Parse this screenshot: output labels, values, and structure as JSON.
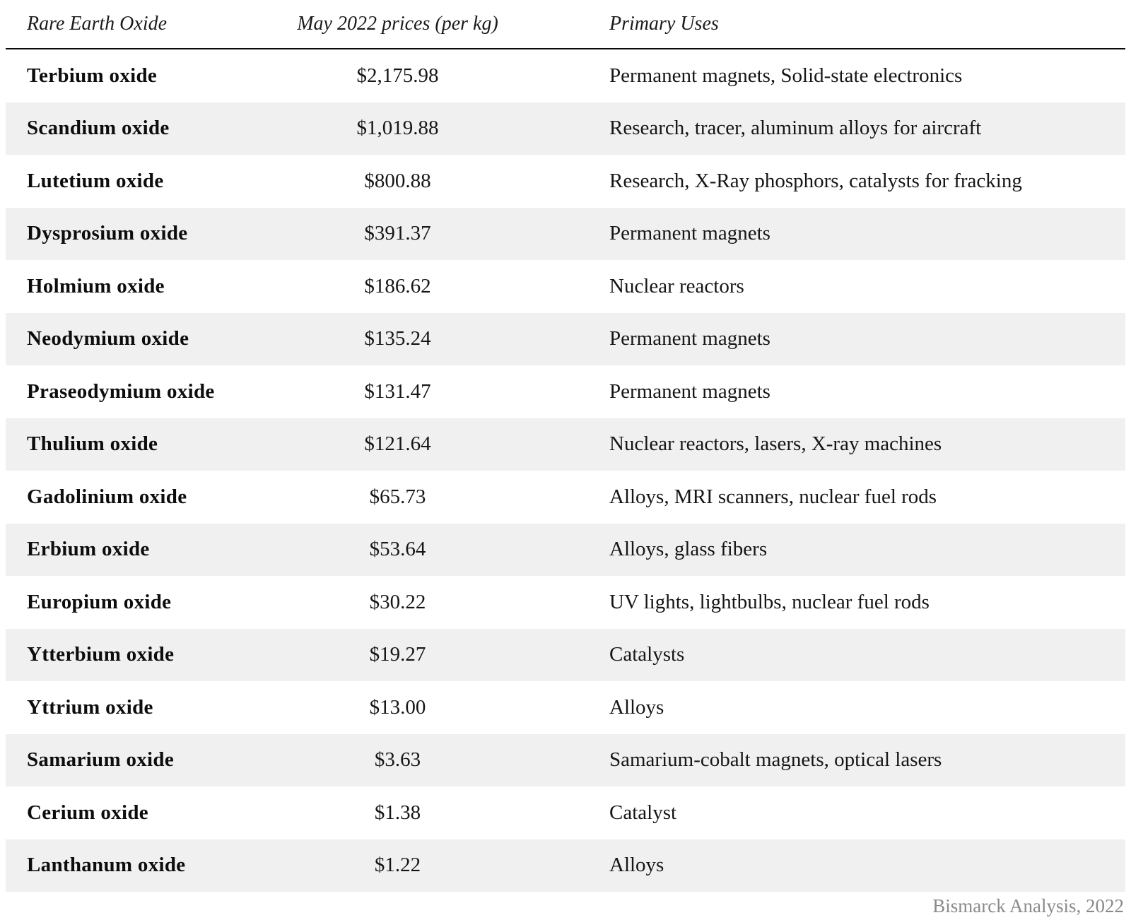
{
  "chart_data": {
    "type": "table",
    "columns": [
      "Rare Earth Oxide",
      "May 2022 prices (per kg)",
      "Primary Uses"
    ],
    "rows": [
      {
        "oxide": "Terbium oxide",
        "price": "$2,175.98",
        "uses": "Permanent magnets, Solid-state electronics"
      },
      {
        "oxide": "Scandium oxide",
        "price": "$1,019.88",
        "uses": "Research, tracer, aluminum alloys for aircraft"
      },
      {
        "oxide": "Lutetium oxide",
        "price": "$800.88",
        "uses": "Research, X-Ray phosphors, catalysts for fracking"
      },
      {
        "oxide": "Dysprosium oxide",
        "price": "$391.37",
        "uses": "Permanent magnets"
      },
      {
        "oxide": "Holmium oxide",
        "price": "$186.62",
        "uses": "Nuclear reactors"
      },
      {
        "oxide": "Neodymium oxide",
        "price": "$135.24",
        "uses": "Permanent magnets"
      },
      {
        "oxide": "Praseodymium oxide",
        "price": "$131.47",
        "uses": "Permanent magnets"
      },
      {
        "oxide": "Thulium oxide",
        "price": "$121.64",
        "uses": "Nuclear reactors, lasers, X-ray machines"
      },
      {
        "oxide": "Gadolinium oxide",
        "price": "$65.73",
        "uses": "Alloys, MRI scanners, nuclear fuel rods"
      },
      {
        "oxide": "Erbium oxide",
        "price": "$53.64",
        "uses": "Alloys, glass fibers"
      },
      {
        "oxide": "Europium oxide",
        "price": "$30.22",
        "uses": "UV lights, lightbulbs, nuclear fuel rods"
      },
      {
        "oxide": "Ytterbium oxide",
        "price": "$19.27",
        "uses": "Catalysts"
      },
      {
        "oxide": "Yttrium oxide",
        "price": "$13.00",
        "uses": "Alloys"
      },
      {
        "oxide": "Samarium oxide",
        "price": "$3.63",
        "uses": "Samarium-cobalt magnets, optical lasers"
      },
      {
        "oxide": "Cerium oxide",
        "price": "$1.38",
        "uses": "Catalyst"
      },
      {
        "oxide": "Lanthanum oxide",
        "price": "$1.22",
        "uses": "Alloys"
      }
    ],
    "source": "Bismarck Analysis, 2022",
    "layout": {
      "row_striping": "odd rows white, even rows gray",
      "header_style": "italic with black rule below"
    }
  },
  "colors": {
    "row_alt_background": "#f0f0f0",
    "header_rule": "#0a0a0a",
    "body_text": "#161616",
    "source_text": "#8a8a8a"
  }
}
